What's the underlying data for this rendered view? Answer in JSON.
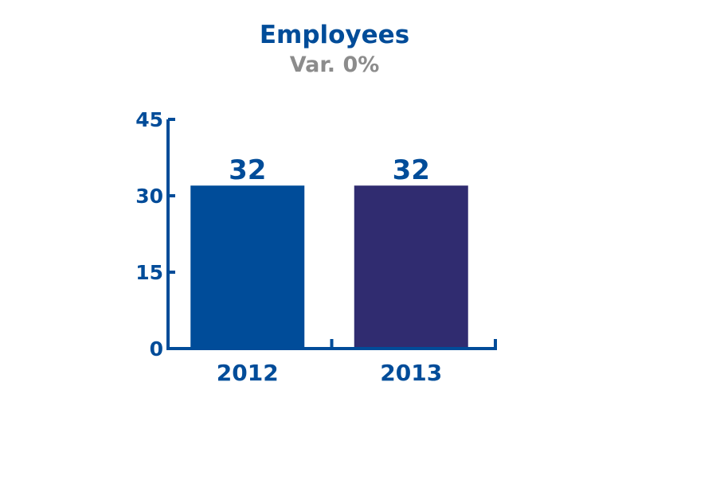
{
  "chart_data": {
    "type": "bar",
    "title": "Employees",
    "subtitle": "Var. 0%",
    "categories": [
      "2012",
      "2013"
    ],
    "values": [
      32,
      32
    ],
    "data_labels": [
      "32",
      "32"
    ],
    "y_ticks": [
      0,
      15,
      30,
      45
    ],
    "ylim": [
      0,
      45
    ],
    "xlabel": "",
    "ylabel": "",
    "grid": false,
    "legend": "none",
    "colors": [
      "#004c99",
      "#302c70"
    ],
    "axis_color": "#004c99"
  }
}
